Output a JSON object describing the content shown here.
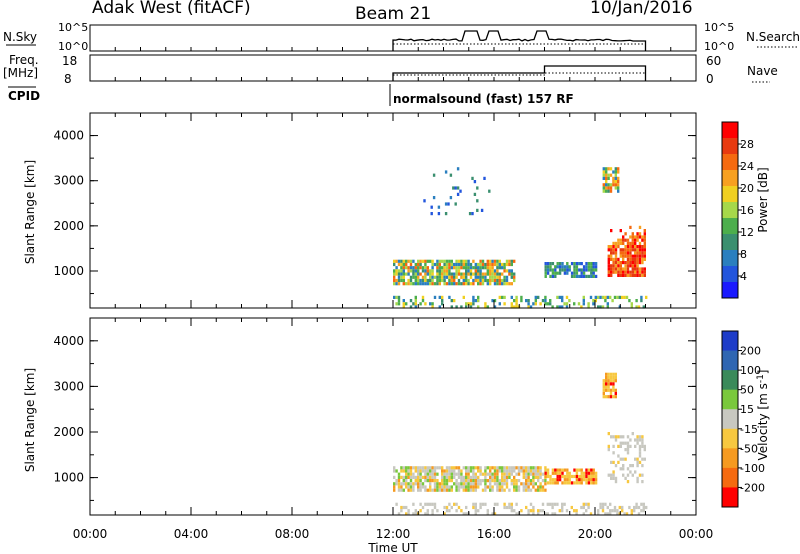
{
  "header": {
    "station": "Adak West (fitACF)",
    "beam": "Beam 21",
    "date": "10/Jan/2016"
  },
  "top_panels": {
    "nsky_label": "N.Sky",
    "nsearch_label": "N.Search",
    "nsky_ticks": [
      "10^5",
      "10^0"
    ],
    "freq_label": "Freq.",
    "freq_unit": "[MHz]",
    "freq_ticks": [
      "18",
      "8"
    ],
    "nave_label": "Nave",
    "nave_ticks": [
      "60",
      "0"
    ],
    "cpid_label": "CPID",
    "cpid_text": "normalsound (fast) 157 RF"
  },
  "x_axis": {
    "title": "Time UT",
    "ticks": [
      "00:00",
      "04:00",
      "08:00",
      "12:00",
      "16:00",
      "20:00",
      "00:00"
    ]
  },
  "chart_data": [
    {
      "type": "heatmap",
      "title": "",
      "xlabel": "Time UT",
      "ylabel": "Slant Range [km]",
      "xlim": [
        0,
        24
      ],
      "ylim": [
        180,
        4500
      ],
      "yticks": [
        "1000",
        "2000",
        "3000",
        "4000"
      ],
      "colorbar": {
        "label": "Power [dB]",
        "ticks": [
          "4",
          "8",
          "12",
          "16",
          "20",
          "24",
          "28"
        ],
        "colors": [
          "#1a1aff",
          "#2255dd",
          "#2a7fbf",
          "#3a8f6f",
          "#4cae4c",
          "#a6d84a",
          "#f0d020",
          "#f7a020",
          "#f56a10",
          "#e83a10",
          "#ff0000"
        ]
      },
      "data_coverage_hours": [
        12,
        22
      ],
      "echo_regions": [
        {
          "t0": 12.0,
          "t1": 16.8,
          "r0": 750,
          "r1": 1250,
          "level": "medium"
        },
        {
          "t0": 18.0,
          "t1": 20.0,
          "r0": 900,
          "r1": 1200,
          "level": "low"
        },
        {
          "t0": 20.5,
          "t1": 22.0,
          "r0": 900,
          "r1": 2000,
          "level": "high"
        },
        {
          "t0": 20.3,
          "t1": 20.9,
          "r0": 2800,
          "r1": 3300,
          "level": "medium"
        },
        {
          "t0": 13.2,
          "t1": 16.0,
          "r0": 2300,
          "r1": 3300,
          "level": "scatter"
        },
        {
          "t0": 12.0,
          "t1": 22.0,
          "r0": 180,
          "r1": 450,
          "level": "ground"
        }
      ]
    },
    {
      "type": "heatmap",
      "title": "",
      "xlabel": "Time UT",
      "ylabel": "Slant Range [km]",
      "xlim": [
        0,
        24
      ],
      "ylim": [
        180,
        4500
      ],
      "yticks": [
        "1000",
        "2000",
        "3000",
        "4000"
      ],
      "colorbar": {
        "label": "Velocity [m s-1]",
        "ticks": [
          "200",
          "100",
          "50",
          "15",
          "-15",
          "-50",
          "-100",
          "-200"
        ],
        "colors": [
          "#1e3cc8",
          "#2f66b2",
          "#3a8a5a",
          "#7ac83c",
          "#c8c8c0",
          "#f7c840",
          "#f59a20",
          "#f56a10",
          "#ff0000"
        ]
      },
      "data_coverage_hours": [
        12,
        22
      ],
      "echo_regions": [
        {
          "t0": 12.0,
          "t1": 18.0,
          "r0": 750,
          "r1": 1250,
          "level": "mixed"
        },
        {
          "t0": 18.0,
          "t1": 20.0,
          "r0": 900,
          "r1": 1200,
          "level": "negative"
        },
        {
          "t0": 20.5,
          "t1": 22.0,
          "r0": 900,
          "r1": 2000,
          "level": "ground"
        },
        {
          "t0": 20.3,
          "t1": 20.8,
          "r0": 2800,
          "r1": 3300,
          "level": "negative"
        },
        {
          "t0": 12.0,
          "t1": 22.0,
          "r0": 180,
          "r1": 450,
          "level": "ground"
        }
      ]
    }
  ]
}
